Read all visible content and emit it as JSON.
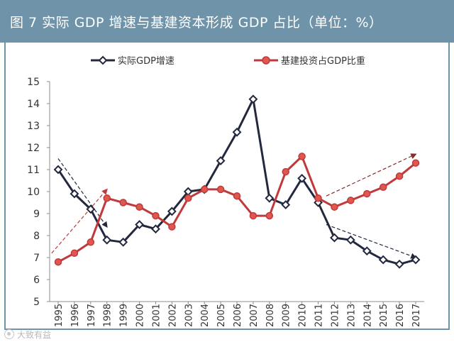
{
  "header": {
    "title": "图 7  实际 GDP 增速与基建资本形成 GDP 占比（单位：%）"
  },
  "watermark": {
    "text": "大致有益"
  },
  "colors": {
    "header_bg": "#6f93a8",
    "series_gdp": "#24283f",
    "series_infra": "#c0393b",
    "marker_infra_fill": "#e0574f",
    "arrow": "#8a2a2a"
  },
  "chart_data": {
    "type": "line",
    "title": "",
    "xlabel": "",
    "ylabel": "",
    "ylim": [
      5,
      15
    ],
    "yticks": [
      5,
      6,
      7,
      8,
      9,
      10,
      11,
      12,
      13,
      14,
      15
    ],
    "grid": false,
    "legend_position": "top",
    "categories": [
      "1995",
      "1996",
      "1997",
      "1998",
      "1999",
      "2000",
      "2001",
      "2002",
      "2003",
      "2004",
      "2005",
      "2006",
      "2007",
      "2008",
      "2009",
      "2010",
      "2011",
      "2012",
      "2013",
      "2014",
      "2015",
      "2016",
      "2017"
    ],
    "series": [
      {
        "name": "实际GDP增速",
        "marker": "diamond",
        "values": [
          11.0,
          9.9,
          9.2,
          7.8,
          7.7,
          8.5,
          8.3,
          9.1,
          10.0,
          10.1,
          11.4,
          12.7,
          14.2,
          9.7,
          9.4,
          10.6,
          9.5,
          7.9,
          7.8,
          7.3,
          6.9,
          6.7,
          6.9
        ]
      },
      {
        "name": "基建投资占GDP比重",
        "marker": "circle",
        "values": [
          6.8,
          7.2,
          7.7,
          9.7,
          9.5,
          9.3,
          8.9,
          8.4,
          9.7,
          10.1,
          10.1,
          9.8,
          8.9,
          8.9,
          10.9,
          11.6,
          9.7,
          9.3,
          9.6,
          9.9,
          10.2,
          10.7,
          11.3
        ]
      }
    ],
    "annotations": [
      {
        "type": "arrow",
        "from": [
          "1995",
          11.5
        ],
        "to": [
          "1998",
          8.4
        ],
        "color": "#24283f"
      },
      {
        "type": "arrow",
        "from": [
          "1994.6",
          7.2
        ],
        "to": [
          "1998",
          10.1
        ],
        "color": "#c0393b"
      },
      {
        "type": "arrow",
        "from": [
          "2011.5",
          9.8
        ],
        "to": [
          "2017",
          11.7
        ],
        "color": "#8a2a2a"
      },
      {
        "type": "arrow",
        "from": [
          "2011.5",
          8.5
        ],
        "to": [
          "2017",
          7.0
        ],
        "color": "#24283f"
      }
    ]
  }
}
